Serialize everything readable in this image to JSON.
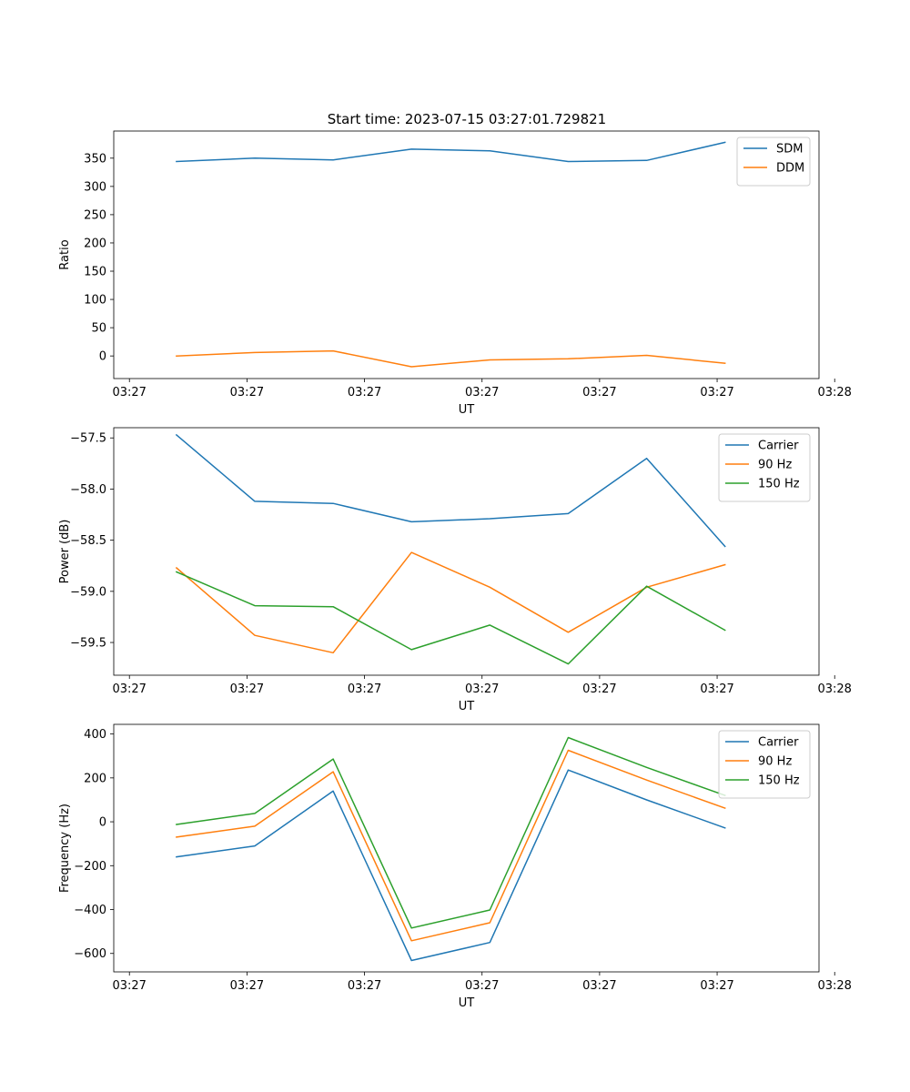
{
  "figure_title": "Start time: 2023-07-15 03:27:01.729821",
  "colors": {
    "blue": "#1f77b4",
    "orange": "#ff7f0e",
    "green": "#2ca02c"
  },
  "chart_data": [
    {
      "type": "line",
      "title": "Start time: 2023-07-15 03:27:01.729821",
      "xlabel": "UT",
      "ylabel": "Ratio",
      "x": [
        1,
        2,
        3,
        4,
        5,
        6,
        7,
        8
      ],
      "xlim": [
        0.2,
        9.2
      ],
      "xticks": [
        0.4,
        1.9,
        3.4,
        4.9,
        6.4,
        7.9,
        9.4
      ],
      "xtick_labels": [
        "03:27",
        "03:27",
        "03:27",
        "03:27",
        "03:27",
        "03:27",
        "03:28"
      ],
      "ylim": [
        -40,
        398
      ],
      "yticks": [
        0,
        50,
        100,
        150,
        200,
        250,
        300,
        350
      ],
      "ytick_labels": [
        "0",
        "50",
        "100",
        "150",
        "200",
        "250",
        "300",
        "350"
      ],
      "legend_position": "top-right",
      "series": [
        {
          "name": "SDM",
          "color": "#1f77b4",
          "values": [
            344,
            350,
            347,
            366,
            363,
            344,
            346,
            378
          ]
        },
        {
          "name": "DDM",
          "color": "#ff7f0e",
          "values": [
            0,
            6,
            9,
            -19,
            -7,
            -5,
            1,
            -13
          ]
        }
      ]
    },
    {
      "type": "line",
      "title": "",
      "xlabel": "UT",
      "ylabel": "Power (dB)",
      "x": [
        1,
        2,
        3,
        4,
        5,
        6,
        7,
        8
      ],
      "xlim": [
        0.2,
        9.2
      ],
      "xticks": [
        0.4,
        1.9,
        3.4,
        4.9,
        6.4,
        7.9,
        9.4
      ],
      "xtick_labels": [
        "03:27",
        "03:27",
        "03:27",
        "03:27",
        "03:27",
        "03:27",
        "03:28"
      ],
      "ylim": [
        -59.82,
        -57.4
      ],
      "yticks": [
        -59.5,
        -59.0,
        -58.5,
        -58.0,
        -57.5
      ],
      "ytick_labels": [
        "−59.5",
        "−59.0",
        "−58.5",
        "−58.0",
        "−57.5"
      ],
      "legend_position": "top-right",
      "series": [
        {
          "name": "Carrier",
          "color": "#1f77b4",
          "values": [
            -57.47,
            -58.12,
            -58.14,
            -58.32,
            -58.29,
            -58.24,
            -57.7,
            -58.56
          ]
        },
        {
          "name": "90 Hz",
          "color": "#ff7f0e",
          "values": [
            -58.77,
            -59.43,
            -59.6,
            -58.62,
            -58.96,
            -59.4,
            -58.96,
            -58.74
          ]
        },
        {
          "name": "150 Hz",
          "color": "#2ca02c",
          "values": [
            -58.81,
            -59.14,
            -59.15,
            -59.57,
            -59.33,
            -59.71,
            -58.95,
            -59.38
          ]
        }
      ]
    },
    {
      "type": "line",
      "title": "",
      "xlabel": "UT",
      "ylabel": "Frequency (Hz)",
      "x": [
        1,
        2,
        3,
        4,
        5,
        6,
        7,
        8
      ],
      "xlim": [
        0.2,
        9.2
      ],
      "xticks": [
        0.4,
        1.9,
        3.4,
        4.9,
        6.4,
        7.9,
        9.4
      ],
      "xtick_labels": [
        "03:27",
        "03:27",
        "03:27",
        "03:27",
        "03:27",
        "03:27",
        "03:28"
      ],
      "ylim": [
        -684,
        444
      ],
      "yticks": [
        -600,
        -400,
        -200,
        0,
        200,
        400
      ],
      "ytick_labels": [
        "−600",
        "−400",
        "−200",
        "0",
        "200",
        "400"
      ],
      "legend_position": "top-right",
      "series": [
        {
          "name": "Carrier",
          "color": "#1f77b4",
          "values": [
            -160,
            -110,
            140,
            -632,
            -550,
            236,
            100,
            -28
          ]
        },
        {
          "name": "90 Hz",
          "color": "#ff7f0e",
          "values": [
            -70,
            -20,
            228,
            -542,
            -460,
            326,
            190,
            62
          ]
        },
        {
          "name": "150 Hz",
          "color": "#2ca02c",
          "values": [
            -12,
            38,
            286,
            -484,
            -402,
            384,
            248,
            120
          ]
        }
      ]
    }
  ]
}
